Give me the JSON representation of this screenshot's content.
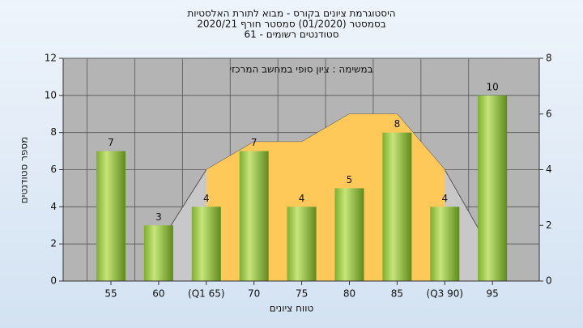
{
  "chart_data": {
    "type": "bar",
    "title": [
      "היסטוגרמת ציונים בקורס - מבוא לתורת האלסטיות",
      "בסמסטר (01/2020) סמסטר חורף 2020/21",
      "סטודנטים רשומים - 61"
    ],
    "subtitle": "במשימה : ציון סופי במחשב המרכזי",
    "x_label": "טווח ציונים",
    "y_label": "מספר סטודנטים",
    "categories": [
      "55",
      "60",
      "(Q1 65)",
      "70",
      "75",
      "80",
      "85",
      "(Q3 90)",
      "95"
    ],
    "values": [
      7,
      3,
      4,
      7,
      4,
      5,
      8,
      4,
      10
    ],
    "color": "#9acd42",
    "areas": [
      {
        "color": "#c8c8c8",
        "axis": "y2",
        "values": [
          null,
          1.3,
          4,
          5,
          5,
          6,
          6,
          4,
          1
        ]
      },
      {
        "color": "#ffc95a",
        "axis": "y2",
        "values": [
          null,
          null,
          4,
          5,
          5,
          6,
          6,
          4,
          null
        ]
      }
    ],
    "ylim": [
      0,
      12
    ],
    "yticks": [
      0,
      2,
      4,
      6,
      8,
      10,
      12
    ],
    "y2lim": [
      0,
      8
    ],
    "y2ticks": [
      0,
      2,
      4,
      6,
      8
    ],
    "grid": true
  }
}
